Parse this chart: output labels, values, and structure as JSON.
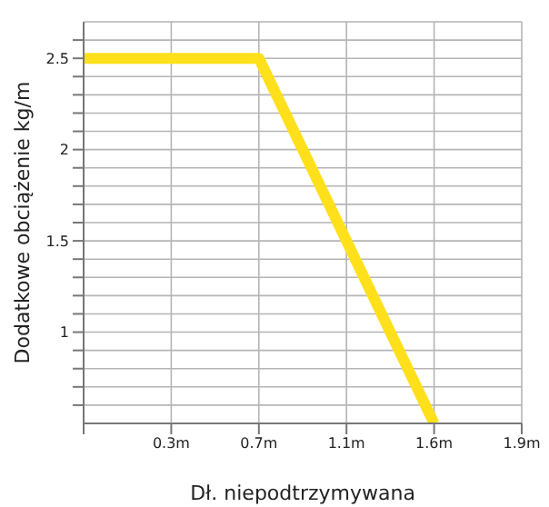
{
  "chart_data": {
    "type": "line",
    "xlabel": "Dł. niepodtrzymywana",
    "ylabel": "Dodatkowe obciążenie kg/m",
    "categories": [
      null,
      "0.3m",
      "0.7m",
      "1.1m",
      "1.6m",
      "1.9m"
    ],
    "series": [
      {
        "color": "#ffe01b",
        "values": [
          2.5,
          2.5,
          2.5,
          1.5,
          0.5,
          null
        ]
      }
    ],
    "ylim": [
      0.5,
      2.7
    ],
    "yticks": [
      {
        "value": 0.6,
        "label": null
      },
      {
        "value": 0.7,
        "label": null
      },
      {
        "value": 0.8,
        "label": null
      },
      {
        "value": 0.9,
        "label": null
      },
      1,
      {
        "value": 1.1,
        "label": null
      },
      {
        "value": 1.2,
        "label": null
      },
      {
        "value": 1.3,
        "label": null
      },
      {
        "value": 1.4,
        "label": null
      },
      1.5,
      {
        "value": 1.6,
        "label": null
      },
      {
        "value": 1.7,
        "label": null
      },
      {
        "value": 1.8,
        "label": null
      },
      {
        "value": 1.9,
        "label": null
      },
      2,
      {
        "value": 2.1,
        "label": null
      },
      {
        "value": 2.2,
        "label": null
      },
      {
        "value": 2.3,
        "label": null
      },
      {
        "value": 2.4,
        "label": null
      },
      2.5,
      {
        "value": 2.6,
        "label": null
      }
    ],
    "grid": true,
    "legend": false,
    "marker": "none",
    "line_style": "solid"
  }
}
